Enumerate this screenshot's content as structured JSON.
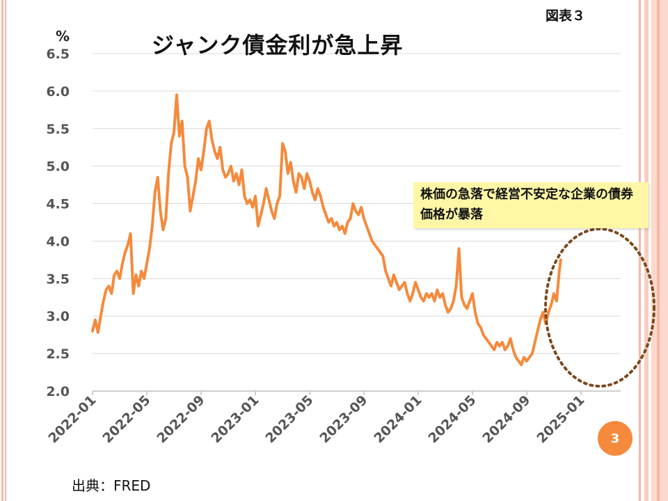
{
  "figure_label": "図表３",
  "source_text": "出典：FRED",
  "page_number": "3",
  "colors": {
    "line": "#f58a3c",
    "grid": "#d9d9d9",
    "ellipse": "#7a4a1e",
    "annotation_bg": "#fff7a6"
  },
  "chart_data": {
    "type": "line",
    "title": "ジャンク債金利が急上昇",
    "unit_label": "%",
    "xlabel": "",
    "ylabel": "%",
    "ylim": [
      2.0,
      6.5
    ],
    "yticks": [
      "2.0",
      "2.5",
      "3.0",
      "3.5",
      "4.0",
      "4.5",
      "5.0",
      "5.5",
      "6.0",
      "6.5"
    ],
    "xticks": [
      "2022-01",
      "2022-05",
      "2022-09",
      "2023-01",
      "2023-05",
      "2023-09",
      "2024-01",
      "2024-05",
      "2024-09",
      "2025-01"
    ],
    "xlim_months": [
      0,
      38.8
    ],
    "annotation": "株価の急落で経営不安定な企業の債券価格が暴落",
    "series": [
      {
        "name": "ジャンク債金利",
        "points": [
          [
            0.0,
            2.8
          ],
          [
            0.2,
            2.95
          ],
          [
            0.4,
            2.78
          ],
          [
            0.6,
            3.0
          ],
          [
            0.8,
            3.2
          ],
          [
            1.0,
            3.35
          ],
          [
            1.2,
            3.4
          ],
          [
            1.4,
            3.3
          ],
          [
            1.6,
            3.55
          ],
          [
            1.8,
            3.6
          ],
          [
            2.0,
            3.5
          ],
          [
            2.2,
            3.7
          ],
          [
            2.4,
            3.85
          ],
          [
            2.6,
            3.95
          ],
          [
            2.8,
            4.1
          ],
          [
            3.0,
            3.3
          ],
          [
            3.2,
            3.55
          ],
          [
            3.4,
            3.4
          ],
          [
            3.6,
            3.6
          ],
          [
            3.8,
            3.5
          ],
          [
            4.0,
            3.7
          ],
          [
            4.2,
            3.9
          ],
          [
            4.4,
            4.2
          ],
          [
            4.6,
            4.65
          ],
          [
            4.8,
            4.85
          ],
          [
            5.0,
            4.4
          ],
          [
            5.2,
            4.15
          ],
          [
            5.4,
            4.3
          ],
          [
            5.6,
            4.9
          ],
          [
            5.8,
            5.3
          ],
          [
            6.0,
            5.45
          ],
          [
            6.2,
            5.95
          ],
          [
            6.4,
            5.4
          ],
          [
            6.6,
            5.6
          ],
          [
            6.8,
            5.0
          ],
          [
            7.0,
            4.85
          ],
          [
            7.2,
            4.4
          ],
          [
            7.4,
            4.6
          ],
          [
            7.6,
            4.8
          ],
          [
            7.8,
            5.1
          ],
          [
            8.0,
            4.95
          ],
          [
            8.2,
            5.2
          ],
          [
            8.4,
            5.5
          ],
          [
            8.6,
            5.6
          ],
          [
            8.8,
            5.35
          ],
          [
            9.0,
            5.2
          ],
          [
            9.2,
            5.1
          ],
          [
            9.4,
            5.25
          ],
          [
            9.6,
            4.95
          ],
          [
            9.8,
            4.85
          ],
          [
            10.0,
            4.9
          ],
          [
            10.2,
            5.0
          ],
          [
            10.4,
            4.8
          ],
          [
            10.6,
            4.9
          ],
          [
            10.8,
            4.75
          ],
          [
            11.0,
            4.95
          ],
          [
            11.2,
            4.6
          ],
          [
            11.4,
            4.5
          ],
          [
            11.6,
            4.55
          ],
          [
            11.8,
            4.45
          ],
          [
            12.0,
            4.6
          ],
          [
            12.2,
            4.2
          ],
          [
            12.4,
            4.35
          ],
          [
            12.6,
            4.5
          ],
          [
            12.8,
            4.7
          ],
          [
            13.0,
            4.55
          ],
          [
            13.2,
            4.4
          ],
          [
            13.4,
            4.3
          ],
          [
            13.6,
            4.5
          ],
          [
            13.8,
            4.6
          ],
          [
            14.0,
            5.3
          ],
          [
            14.2,
            5.2
          ],
          [
            14.4,
            4.9
          ],
          [
            14.6,
            5.05
          ],
          [
            14.8,
            4.8
          ],
          [
            15.0,
            4.65
          ],
          [
            15.2,
            4.9
          ],
          [
            15.4,
            4.85
          ],
          [
            15.6,
            4.7
          ],
          [
            15.8,
            4.9
          ],
          [
            16.0,
            4.8
          ],
          [
            16.2,
            4.65
          ],
          [
            16.4,
            4.55
          ],
          [
            16.6,
            4.7
          ],
          [
            16.8,
            4.6
          ],
          [
            17.0,
            4.45
          ],
          [
            17.2,
            4.35
          ],
          [
            17.4,
            4.25
          ],
          [
            17.6,
            4.3
          ],
          [
            17.8,
            4.2
          ],
          [
            18.0,
            4.25
          ],
          [
            18.2,
            4.15
          ],
          [
            18.4,
            4.2
          ],
          [
            18.6,
            4.1
          ],
          [
            18.8,
            4.25
          ],
          [
            19.0,
            4.3
          ],
          [
            19.2,
            4.5
          ],
          [
            19.4,
            4.4
          ],
          [
            19.6,
            4.35
          ],
          [
            19.8,
            4.45
          ],
          [
            20.0,
            4.3
          ],
          [
            20.2,
            4.2
          ],
          [
            20.4,
            4.1
          ],
          [
            20.6,
            4.0
          ],
          [
            20.8,
            3.95
          ],
          [
            21.0,
            3.9
          ],
          [
            21.2,
            3.85
          ],
          [
            21.4,
            3.8
          ],
          [
            21.6,
            3.6
          ],
          [
            21.8,
            3.5
          ],
          [
            22.0,
            3.4
          ],
          [
            22.2,
            3.55
          ],
          [
            22.4,
            3.45
          ],
          [
            22.6,
            3.35
          ],
          [
            22.8,
            3.4
          ],
          [
            23.0,
            3.45
          ],
          [
            23.2,
            3.3
          ],
          [
            23.4,
            3.2
          ],
          [
            23.6,
            3.3
          ],
          [
            23.8,
            3.45
          ],
          [
            24.0,
            3.35
          ],
          [
            24.2,
            3.25
          ],
          [
            24.4,
            3.2
          ],
          [
            24.6,
            3.3
          ],
          [
            24.8,
            3.25
          ],
          [
            25.0,
            3.3
          ],
          [
            25.2,
            3.2
          ],
          [
            25.4,
            3.35
          ],
          [
            25.6,
            3.25
          ],
          [
            25.8,
            3.3
          ],
          [
            26.0,
            3.15
          ],
          [
            26.2,
            3.05
          ],
          [
            26.4,
            3.1
          ],
          [
            26.6,
            3.2
          ],
          [
            26.8,
            3.4
          ],
          [
            27.0,
            3.9
          ],
          [
            27.2,
            3.25
          ],
          [
            27.4,
            3.15
          ],
          [
            27.6,
            3.1
          ],
          [
            27.8,
            3.2
          ],
          [
            28.0,
            3.3
          ],
          [
            28.2,
            3.05
          ],
          [
            28.4,
            2.9
          ],
          [
            28.6,
            2.85
          ],
          [
            28.8,
            2.75
          ],
          [
            29.0,
            2.7
          ],
          [
            29.2,
            2.65
          ],
          [
            29.4,
            2.6
          ],
          [
            29.6,
            2.55
          ],
          [
            29.8,
            2.65
          ],
          [
            30.0,
            2.6
          ],
          [
            30.2,
            2.65
          ],
          [
            30.4,
            2.55
          ],
          [
            30.6,
            2.6
          ],
          [
            30.8,
            2.7
          ],
          [
            31.0,
            2.55
          ],
          [
            31.2,
            2.45
          ],
          [
            31.4,
            2.4
          ],
          [
            31.6,
            2.35
          ],
          [
            31.8,
            2.45
          ],
          [
            32.0,
            2.4
          ],
          [
            32.2,
            2.45
          ],
          [
            32.4,
            2.5
          ],
          [
            32.6,
            2.65
          ],
          [
            32.8,
            2.8
          ],
          [
            33.0,
            2.95
          ],
          [
            33.2,
            3.05
          ],
          [
            33.4,
            2.9
          ],
          [
            33.6,
            3.05
          ],
          [
            33.8,
            3.15
          ],
          [
            34.0,
            3.3
          ],
          [
            34.2,
            3.2
          ],
          [
            34.4,
            3.6
          ],
          [
            34.5,
            3.75
          ]
        ]
      }
    ]
  }
}
